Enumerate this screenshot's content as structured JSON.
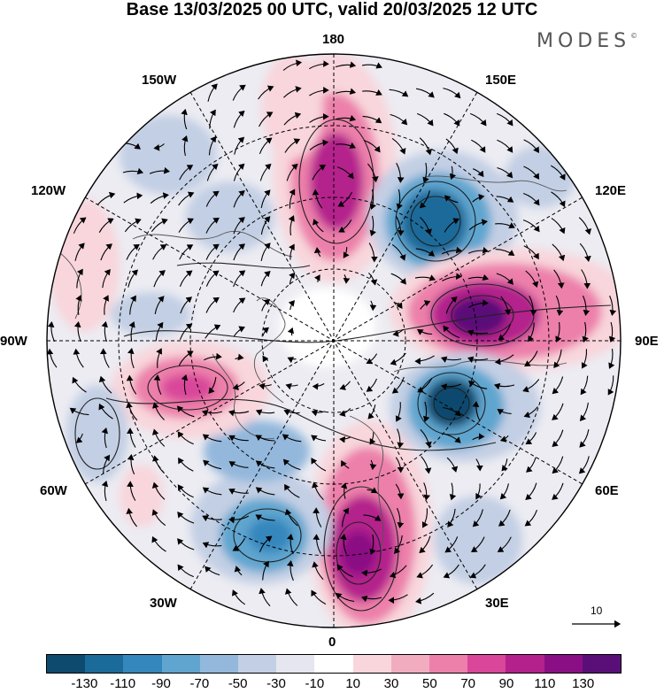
{
  "title": "Base 13/03/2025 00 UTC, valid 20/03/2025 12 UTC",
  "brand": "MODES",
  "brand_mark": "©",
  "longitude_labels": {
    "lon_180": "180",
    "lon_150e": "150E",
    "lon_120e": "120E",
    "lon_90e": "90E",
    "lon_60e": "60E",
    "lon_30e": "30E",
    "lon_0": "0",
    "lon_30w": "30W",
    "lon_60w": "60W",
    "lon_90w": "90W",
    "lon_120w": "120W",
    "lon_150w": "150W"
  },
  "vector_scale": {
    "label": "10"
  },
  "colorbar": {
    "colors": [
      "#0d4a6e",
      "#1a6a9a",
      "#3487bd",
      "#5fa5cf",
      "#93b8dc",
      "#c3cfe4",
      "#e6e6f0",
      "#ffffff",
      "#f8d6dc",
      "#f2acc0",
      "#ec80aa",
      "#d9469a",
      "#b4208c",
      "#8a0f84",
      "#5a0f78"
    ],
    "ticks": [
      "-130",
      "-110",
      "-90",
      "-70",
      "-50",
      "-30",
      "-10",
      "10",
      "30",
      "50",
      "70",
      "90",
      "110",
      "130"
    ]
  }
}
